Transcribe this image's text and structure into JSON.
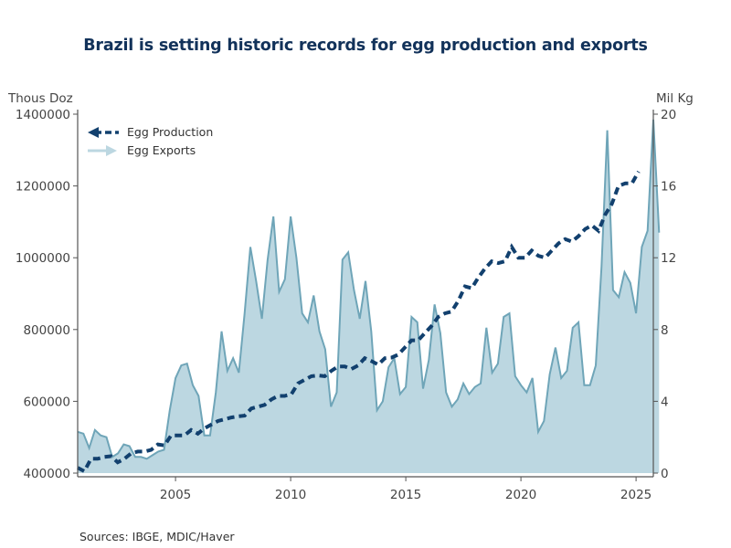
{
  "chart_data": {
    "type": "area",
    "title": "Brazil is setting historic records for egg production and exports",
    "left_axis": {
      "label": "Thous Doz",
      "ylim": [
        400000,
        1400000
      ],
      "ticks": [
        400000,
        600000,
        800000,
        1000000,
        1200000,
        1400000
      ],
      "tick_labels": [
        "400000",
        "600000",
        "800000",
        "1000000",
        "1200000",
        "1400000"
      ]
    },
    "right_axis": {
      "label": "Mil Kg",
      "ylim": [
        0,
        20
      ],
      "ticks": [
        0,
        4,
        8,
        12,
        16,
        20
      ],
      "tick_labels": [
        "0",
        "4",
        "8",
        "12",
        "16",
        "20"
      ]
    },
    "x_axis": {
      "xlim": [
        2000.75,
        2025.6
      ],
      "ticks": [
        2005,
        2010,
        2015,
        2020,
        2025
      ],
      "tick_labels": [
        "2005",
        "2010",
        "2015",
        "2020",
        "2025"
      ],
      "frequency": "quarterly",
      "start": 2000.75
    },
    "grid": false,
    "legend": {
      "placement": "top-left",
      "entries": [
        "Egg Production",
        "Egg Exports"
      ]
    },
    "series": [
      {
        "name": "Egg Production",
        "axis": "left",
        "style": "dashed-line",
        "color": "#12406e",
        "values": [
          415000,
          405000,
          440000,
          440000,
          445000,
          447000,
          430000,
          440000,
          455000,
          460000,
          460000,
          465000,
          480000,
          477000,
          505000,
          505000,
          505000,
          520000,
          510000,
          525000,
          535000,
          545000,
          550000,
          555000,
          558000,
          560000,
          580000,
          585000,
          590000,
          605000,
          615000,
          615000,
          620000,
          650000,
          660000,
          670000,
          672000,
          670000,
          685000,
          697000,
          697000,
          690000,
          700000,
          720000,
          712000,
          702000,
          720000,
          722000,
          730000,
          750000,
          770000,
          770000,
          790000,
          810000,
          835000,
          845000,
          850000,
          880000,
          920000,
          915000,
          945000,
          970000,
          990000,
          985000,
          990000,
          1030000,
          1000000,
          1000000,
          1020000,
          1005000,
          1000000,
          1020000,
          1040000,
          1052000,
          1045000,
          1060000,
          1080000,
          1090000,
          1075000,
          1120000,
          1150000,
          1200000,
          1207000,
          1207000,
          1240000
        ]
      },
      {
        "name": "Egg Exports",
        "axis": "right",
        "style": "filled-area",
        "color": "#6fa5b8",
        "fill": "#bcd7e1",
        "values": [
          2.3,
          2.2,
          1.4,
          2.4,
          2.1,
          2.0,
          0.9,
          1.1,
          1.6,
          1.5,
          0.9,
          0.9,
          0.8,
          1.0,
          1.2,
          1.3,
          3.5,
          5.3,
          6.0,
          6.1,
          4.9,
          4.3,
          2.1,
          2.1,
          4.5,
          7.9,
          5.7,
          6.4,
          5.6,
          8.9,
          12.6,
          10.7,
          8.6,
          11.9,
          14.3,
          10.1,
          10.8,
          14.3,
          12.0,
          8.9,
          8.4,
          9.9,
          7.9,
          6.9,
          3.7,
          4.5,
          11.9,
          12.3,
          10.2,
          8.6,
          10.7,
          7.9,
          3.5,
          4.0,
          5.9,
          6.4,
          4.4,
          4.8,
          8.7,
          8.4,
          4.7,
          6.3,
          9.4,
          7.8,
          4.5,
          3.7,
          4.1,
          5.0,
          4.4,
          4.8,
          5.0,
          8.1,
          5.6,
          6.1,
          8.7,
          8.9,
          5.4,
          4.9,
          4.5,
          5.3,
          2.3,
          2.9,
          5.5,
          7.0,
          5.3,
          5.7,
          8.1,
          8.4,
          4.9,
          4.9,
          6.0,
          11.5,
          19.1,
          10.2,
          9.8,
          11.2,
          10.6,
          8.9,
          12.6,
          13.5,
          19.7,
          13.4
        ]
      }
    ]
  },
  "footer": {
    "source": "Sources:  IBGE, MDIC/Haver"
  }
}
